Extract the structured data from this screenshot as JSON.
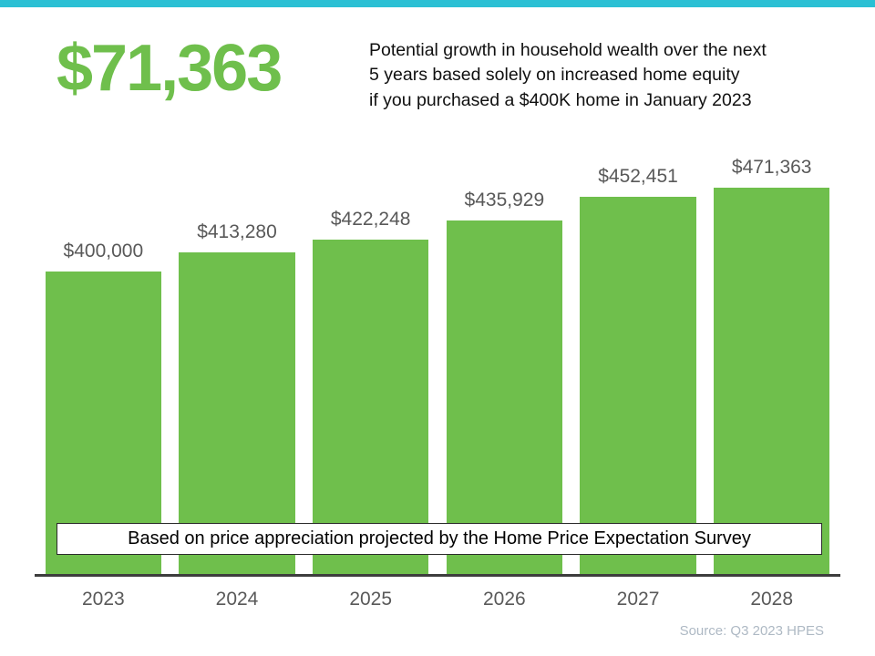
{
  "header": {
    "headline": "$71,363",
    "description_lines": [
      "Potential growth in household wealth over the next",
      "5 years based solely on increased home equity",
      "if you purchased a $400K home in January 2023"
    ]
  },
  "banner": {
    "text": "Based on price appreciation projected by the Home Price Expectation Survey"
  },
  "footer": {
    "source": "Source: Q3 2023 HPES"
  },
  "colors": {
    "accent_green": "#6FBF4C",
    "top_bar_teal": "#2BC0D4",
    "label_gray": "#595959",
    "axis_dark": "#3d3d3d"
  },
  "chart_data": {
    "type": "bar",
    "title": "",
    "xlabel": "",
    "ylabel": "",
    "categories": [
      "2023",
      "2024",
      "2025",
      "2026",
      "2027",
      "2028"
    ],
    "values": [
      400000,
      413280,
      422248,
      435929,
      452451,
      471363
    ],
    "labels": [
      "$400,000",
      "$413,280",
      "$422,248",
      "$435,929",
      "$452,451",
      "$471,363"
    ],
    "ylim": [
      190000,
      480000
    ],
    "grid": false,
    "legend": "none",
    "bar_color": "#6FBF4C",
    "label_color": "#595959"
  }
}
